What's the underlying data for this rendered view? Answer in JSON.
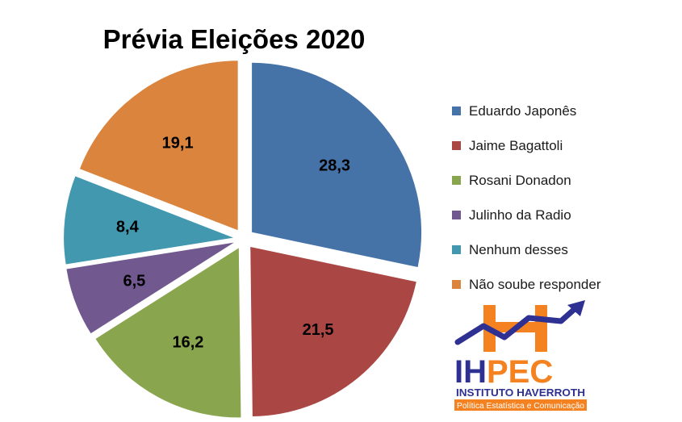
{
  "chart_data": {
    "type": "pie",
    "title": "Prévia Eleições 2020",
    "legend_position": "right",
    "slices": [
      {
        "name": "Eduardo Japonês",
        "value": 28.3,
        "label": "28,3",
        "color": "#4572A7"
      },
      {
        "name": "Jaime Bagattoli",
        "value": 21.5,
        "label": "21,5",
        "color": "#AA4643"
      },
      {
        "name": "Rosani Donadon",
        "value": 16.2,
        "label": "16,2",
        "color": "#89A54E"
      },
      {
        "name": "Julinho da Radio",
        "value": 6.5,
        "label": "6,5",
        "color": "#71588F"
      },
      {
        "name": "Nenhum desses",
        "value": 8.4,
        "label": "8,4",
        "color": "#4198AF"
      },
      {
        "name": "Não soube responder",
        "value": 19.1,
        "label": "19,1",
        "color": "#DB843D"
      }
    ]
  },
  "logo": {
    "acronym": "IHPEC",
    "name": "INSTITUTO HAVERROTH",
    "tagline": "Política Estatística e Comunicação",
    "colors": {
      "orange": "#F58220",
      "blue": "#2E3192"
    }
  }
}
